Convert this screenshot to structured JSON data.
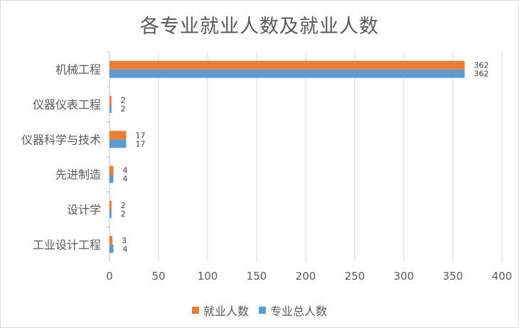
{
  "chart_data": {
    "type": "bar",
    "orientation": "horizontal",
    "title": "各专业就业人数及就业人数",
    "categories": [
      "机械工程",
      "仪器仪表工程",
      "仪器科学与技术",
      "先进制造",
      "设计学",
      "工业设计工程"
    ],
    "series": [
      {
        "name": "就业人数",
        "color": "#ED7D31",
        "values": [
          362,
          2,
          17,
          4,
          2,
          3
        ]
      },
      {
        "name": "专业总人数",
        "color": "#5B9BD5",
        "values": [
          362,
          2,
          17,
          4,
          2,
          4
        ]
      }
    ],
    "xlim": [
      0,
      400
    ],
    "xticks": [
      0,
      50,
      100,
      150,
      200,
      250,
      300,
      350,
      400
    ],
    "grid": true,
    "legend_position": "bottom"
  }
}
